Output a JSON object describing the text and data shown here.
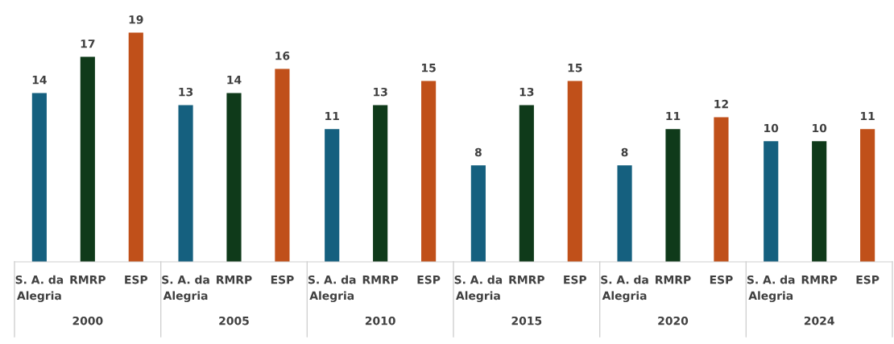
{
  "chart_data": {
    "type": "bar",
    "categories": [
      "2000",
      "2005",
      "2010",
      "2015",
      "2020",
      "2024"
    ],
    "series": [
      {
        "name": "S. A. da\nAlegria",
        "color": "#15607f",
        "values": [
          14,
          13,
          11,
          8,
          8,
          10
        ]
      },
      {
        "name": "RMRP",
        "color": "#0f3a1a",
        "values": [
          17,
          14,
          13,
          13,
          11,
          10
        ]
      },
      {
        "name": "ESP",
        "color": "#c0501a",
        "values": [
          19,
          16,
          15,
          15,
          12,
          11
        ]
      }
    ],
    "data_labels": true,
    "legend": false,
    "grid": false
  }
}
